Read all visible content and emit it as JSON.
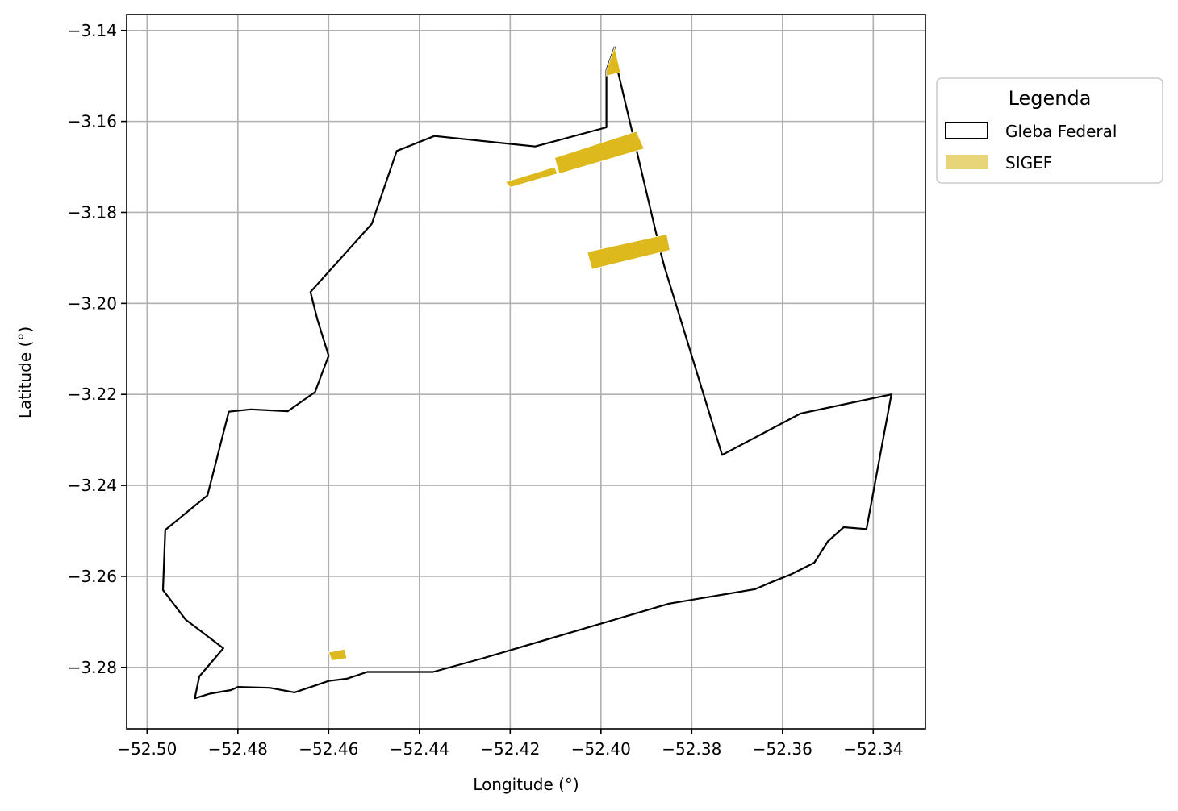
{
  "chart_data": {
    "type": "map",
    "xlabel": "Longitude (°)",
    "ylabel": "Latitude (°)",
    "xlim": [
      -52.5045,
      -52.3285
    ],
    "ylim": [
      -3.2935,
      -3.1365
    ],
    "x_ticks": [
      -52.5,
      -52.48,
      -52.46,
      -52.44,
      -52.42,
      -52.4,
      -52.38,
      -52.36,
      -52.34
    ],
    "x_tick_labels": [
      "−52.50",
      "−52.48",
      "−52.46",
      "−52.44",
      "−52.42",
      "−52.40",
      "−52.38",
      "−52.36",
      "−52.34"
    ],
    "y_ticks": [
      -3.14,
      -3.16,
      -3.18,
      -3.2,
      -3.22,
      -3.24,
      -3.26,
      -3.28
    ],
    "y_tick_labels": [
      "−3.14",
      "−3.16",
      "−3.18",
      "−3.20",
      "−3.22",
      "−3.24",
      "−3.26",
      "−3.28"
    ],
    "grid": true,
    "legend": {
      "title": "Legenda",
      "placement": "outside-upper-right",
      "entries": [
        {
          "label": "Gleba Federal",
          "style": "outline",
          "color": "#000000"
        },
        {
          "label": "SIGEF",
          "style": "fill",
          "color": "#e8d57a"
        }
      ]
    },
    "layers": [
      {
        "name": "Gleba Federal",
        "type": "polygon-outline",
        "color": "#000000",
        "coordinates": [
          [
            -52.397,
            -3.1437
          ],
          [
            -52.3988,
            -3.1488
          ],
          [
            -52.3988,
            -3.1613
          ],
          [
            -52.4145,
            -3.1655
          ],
          [
            -52.4367,
            -3.1632
          ],
          [
            -52.445,
            -3.1665
          ],
          [
            -52.4505,
            -3.1825
          ],
          [
            -52.464,
            -3.1975
          ],
          [
            -52.4625,
            -3.2035
          ],
          [
            -52.46,
            -3.2115
          ],
          [
            -52.463,
            -3.2195
          ],
          [
            -52.469,
            -3.2237
          ],
          [
            -52.4772,
            -3.2233
          ],
          [
            -52.482,
            -3.2238
          ],
          [
            -52.4867,
            -3.2422
          ],
          [
            -52.496,
            -3.2498
          ],
          [
            -52.4965,
            -3.263
          ],
          [
            -52.4915,
            -3.2695
          ],
          [
            -52.4832,
            -3.2758
          ],
          [
            -52.4885,
            -3.282
          ],
          [
            -52.4895,
            -3.2868
          ],
          [
            -52.4862,
            -3.2858
          ],
          [
            -52.4815,
            -3.285
          ],
          [
            -52.48,
            -3.2843
          ],
          [
            -52.473,
            -3.2845
          ],
          [
            -52.4675,
            -3.2855
          ],
          [
            -52.463,
            -3.284
          ],
          [
            -52.46,
            -3.283
          ],
          [
            -52.456,
            -3.2825
          ],
          [
            -52.4515,
            -3.281
          ],
          [
            -52.437,
            -3.281
          ],
          [
            -52.426,
            -3.278
          ],
          [
            -52.385,
            -3.266
          ],
          [
            -52.366,
            -3.2628
          ],
          [
            -52.3625,
            -3.2613
          ],
          [
            -52.358,
            -3.2595
          ],
          [
            -52.353,
            -3.257
          ],
          [
            -52.35,
            -3.2523
          ],
          [
            -52.3465,
            -3.2492
          ],
          [
            -52.3415,
            -3.2496
          ],
          [
            -52.336,
            -3.22
          ],
          [
            -52.356,
            -3.2242
          ],
          [
            -52.3733,
            -3.2333
          ],
          [
            -52.386,
            -3.192
          ],
          [
            -52.3868,
            -3.189
          ],
          [
            -52.3965,
            -3.148
          ],
          [
            -52.397,
            -3.1437
          ]
        ]
      },
      {
        "name": "SIGEF",
        "type": "polygon-fill",
        "color": "#ddb91d",
        "polygons": [
          [
            [
              -52.3988,
              -3.1488
            ],
            [
              -52.397,
              -3.1437
            ],
            [
              -52.3957,
              -3.1492
            ],
            [
              -52.3988,
              -3.15
            ]
          ],
          [
            [
              -52.4102,
              -3.168
            ],
            [
              -52.3922,
              -3.1622
            ],
            [
              -52.3905,
              -3.166
            ],
            [
              -52.4092,
              -3.1715
            ]
          ],
          [
            [
              -52.421,
              -3.1733
            ],
            [
              -52.4102,
              -3.17
            ],
            [
              -52.4096,
              -3.1715
            ],
            [
              -52.42,
              -3.1745
            ]
          ],
          [
            [
              -52.403,
              -3.1887
            ],
            [
              -52.3855,
              -3.1848
            ],
            [
              -52.3848,
              -3.1883
            ],
            [
              -52.402,
              -3.1925
            ]
          ],
          [
            [
              -52.46,
              -3.2767
            ],
            [
              -52.4565,
              -3.276
            ],
            [
              -52.456,
              -3.278
            ],
            [
              -52.4593,
              -3.2785
            ]
          ]
        ]
      }
    ]
  }
}
